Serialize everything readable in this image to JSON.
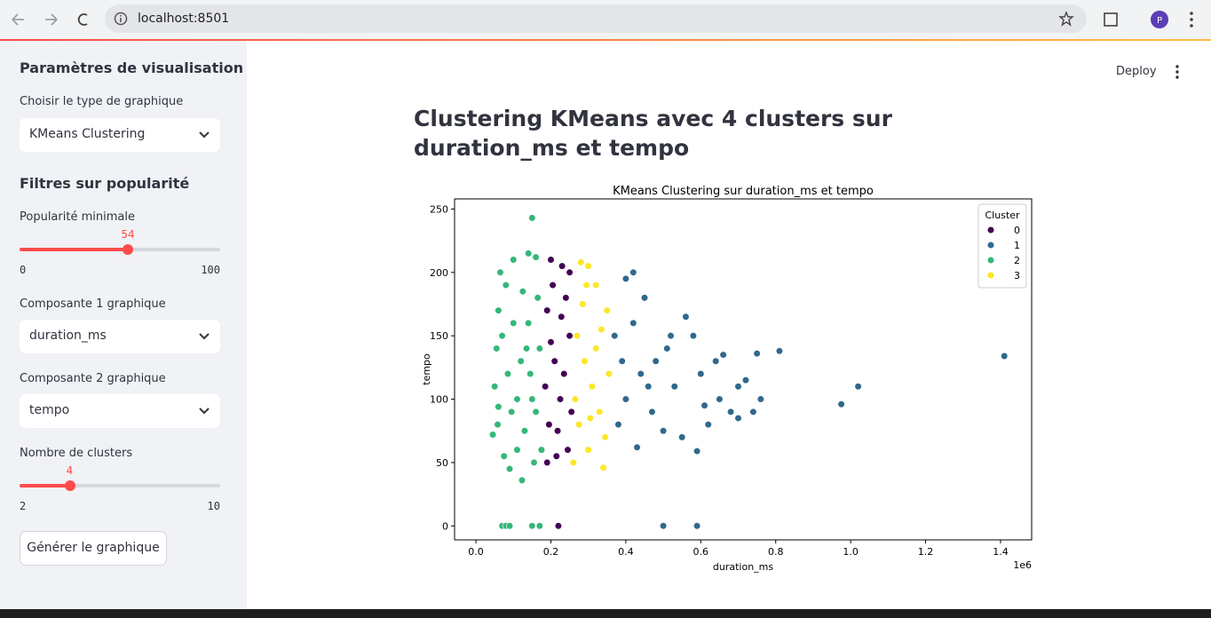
{
  "browser": {
    "url": "localhost:8501"
  },
  "header": {
    "deploy": "Deploy"
  },
  "sidebar": {
    "title": "Paramètres de visualisation",
    "chart_type": {
      "label": "Choisir le type de graphique",
      "value": "KMeans Clustering"
    },
    "filters_title": "Filtres sur popularité",
    "popularity": {
      "label": "Popularité minimale",
      "value": 54,
      "min": 0,
      "max": 100
    },
    "component1": {
      "label": "Composante 1 graphique",
      "value": "duration_ms"
    },
    "component2": {
      "label": "Composante 2 graphique",
      "value": "tempo"
    },
    "clusters": {
      "label": "Nombre de clusters",
      "value": 4,
      "min": 2,
      "max": 10
    },
    "button": "Générer le graphique"
  },
  "main": {
    "title": "Clustering KMeans avec 4 clusters sur duration_ms et tempo"
  },
  "chart_data": {
    "type": "scatter",
    "title": "KMeans Clustering sur duration_ms et tempo",
    "x_label": "duration_ms",
    "y_label": "tempo",
    "x_offset_label": "1e6",
    "xlim": [
      -57000,
      1483000
    ],
    "ylim": [
      -11,
      258
    ],
    "xticks": [
      {
        "value": 0,
        "label": "0.0"
      },
      {
        "value": 200000,
        "label": "0.2"
      },
      {
        "value": 400000,
        "label": "0.4"
      },
      {
        "value": 600000,
        "label": "0.6"
      },
      {
        "value": 800000,
        "label": "0.8"
      },
      {
        "value": 1000000,
        "label": "1.0"
      },
      {
        "value": 1200000,
        "label": "1.2"
      },
      {
        "value": 1400000,
        "label": "1.4"
      }
    ],
    "yticks": [
      0,
      50,
      100,
      150,
      200,
      250
    ],
    "grid": false,
    "legend": {
      "title": "Cluster",
      "position": "upper right"
    },
    "series": [
      {
        "name": "0",
        "color": "#440154",
        "x": [
          220000,
          190000,
          200000,
          230000,
          240000,
          250000,
          190000,
          210000,
          225000,
          195000,
          245000,
          215000,
          235000,
          205000,
          255000,
          185000,
          228000,
          200000,
          250000,
          218000
        ],
        "y": [
          0,
          50,
          210,
          205,
          180,
          150,
          170,
          130,
          100,
          80,
          60,
          55,
          120,
          190,
          90,
          110,
          165,
          145,
          200,
          75
        ]
      },
      {
        "name": "1",
        "color": "#31688e",
        "x": [
          1410000,
          1020000,
          975000,
          810000,
          750000,
          500000,
          590000,
          590000,
          430000,
          400000,
          420000,
          450000,
          560000,
          520000,
          480000,
          600000,
          650000,
          700000,
          720000,
          680000,
          620000,
          550000,
          510000,
          460000,
          400000,
          380000,
          370000,
          420000,
          470000,
          640000,
          610000,
          580000,
          530000,
          500000,
          440000,
          390000,
          660000,
          700000,
          740000,
          760000
        ],
        "y": [
          134,
          110,
          96,
          138,
          136,
          0,
          0,
          59,
          62,
          195,
          200,
          180,
          165,
          150,
          130,
          120,
          100,
          110,
          115,
          90,
          80,
          70,
          140,
          110,
          100,
          80,
          150,
          160,
          90,
          130,
          95,
          150,
          110,
          75,
          120,
          130,
          135,
          85,
          90,
          100
        ]
      },
      {
        "name": "2",
        "color": "#35b779",
        "x": [
          150000,
          60000,
          45000,
          123000,
          70000,
          80000,
          90000,
          150000,
          170000,
          100000,
          140000,
          160000,
          80000,
          60000,
          55000,
          50000,
          58000,
          75000,
          90000,
          110000,
          130000,
          150000,
          120000,
          100000,
          85000,
          140000,
          165000,
          170000,
          160000,
          175000,
          65000,
          95000,
          125000,
          155000,
          110000,
          135000,
          70000,
          145000
        ],
        "y": [
          243,
          94,
          72,
          36,
          0,
          0,
          0,
          0,
          0,
          210,
          215,
          212,
          190,
          170,
          140,
          110,
          80,
          55,
          45,
          60,
          75,
          100,
          130,
          160,
          120,
          160,
          180,
          140,
          90,
          60,
          200,
          90,
          185,
          50,
          100,
          140,
          150,
          120
        ]
      },
      {
        "name": "3",
        "color": "#fde725",
        "x": [
          340000,
          260000,
          280000,
          300000,
          320000,
          350000,
          270000,
          290000,
          310000,
          330000,
          345000,
          275000,
          300000,
          265000,
          320000,
          355000,
          285000,
          335000,
          305000,
          295000
        ],
        "y": [
          46,
          50,
          208,
          205,
          190,
          170,
          150,
          130,
          110,
          90,
          70,
          80,
          60,
          100,
          140,
          120,
          175,
          155,
          85,
          190
        ]
      }
    ]
  }
}
